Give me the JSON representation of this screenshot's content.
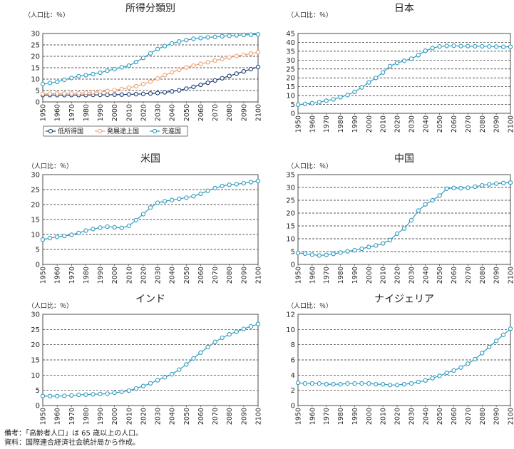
{
  "notes": {
    "remark": "備考：「高齢者人口」は 65 歳以上の人口。",
    "source": "資料：国際連合経済社会統計局から作成。"
  },
  "colors": {
    "low": "#1f3f73",
    "developing": "#f0a173",
    "advanced": "#2e9bc0"
  },
  "chart_data": [
    {
      "type": "line",
      "title": "所得分類別",
      "ylabel": "（人口比：％）",
      "ylim": [
        0,
        30
      ],
      "yticks": [
        0,
        5,
        10,
        15,
        20,
        25,
        30
      ],
      "x": [
        1950,
        1955,
        1960,
        1965,
        1970,
        1975,
        1980,
        1985,
        1990,
        1995,
        2000,
        2005,
        2010,
        2015,
        2020,
        2025,
        2030,
        2035,
        2040,
        2045,
        2050,
        2055,
        2060,
        2065,
        2070,
        2075,
        2080,
        2085,
        2090,
        2095,
        2100
      ],
      "xticks": [
        1950,
        1960,
        1970,
        1980,
        1990,
        2000,
        2010,
        2020,
        2030,
        2040,
        2050,
        2060,
        2070,
        2080,
        2090,
        2100
      ],
      "grid": true,
      "legend": "bottom",
      "series": [
        {
          "name": "低所得国",
          "color_key": "low",
          "values": [
            3.0,
            3.0,
            3.0,
            3.0,
            3.0,
            3.0,
            3.0,
            3.1,
            3.1,
            3.1,
            3.2,
            3.2,
            3.3,
            3.4,
            3.5,
            3.7,
            3.9,
            4.2,
            4.6,
            5.1,
            5.8,
            6.6,
            7.5,
            8.4,
            9.4,
            10.4,
            11.4,
            12.4,
            13.4,
            14.4,
            15.3
          ]
        },
        {
          "name": "発展途上国",
          "color_key": "developing",
          "values": [
            3.5,
            3.6,
            3.7,
            3.7,
            3.7,
            3.8,
            4.0,
            4.2,
            4.5,
            4.8,
            5.2,
            5.6,
            6.2,
            6.9,
            7.8,
            8.9,
            10.3,
            11.7,
            13.0,
            14.1,
            15.1,
            15.9,
            16.7,
            17.4,
            18.1,
            18.8,
            19.5,
            20.1,
            20.6,
            21.2,
            21.8
          ]
        },
        {
          "name": "先進国",
          "color_key": "advanced",
          "values": [
            7.8,
            8.3,
            8.8,
            9.7,
            10.5,
            11.3,
            11.7,
            12.2,
            12.8,
            13.7,
            14.4,
            15.2,
            15.9,
            17.5,
            19.3,
            21.3,
            23.2,
            24.5,
            25.6,
            26.5,
            27.1,
            27.7,
            28.0,
            28.3,
            28.5,
            28.8,
            29.0,
            29.2,
            29.4,
            29.5,
            29.6
          ]
        }
      ]
    },
    {
      "type": "line",
      "title": "日本",
      "ylabel": "（人口比：％）",
      "ylim": [
        0,
        45
      ],
      "yticks": [
        0,
        5,
        10,
        15,
        20,
        25,
        30,
        35,
        40,
        45
      ],
      "x": [
        1950,
        1955,
        1960,
        1965,
        1970,
        1975,
        1980,
        1985,
        1990,
        1995,
        2000,
        2005,
        2010,
        2015,
        2020,
        2025,
        2030,
        2035,
        2040,
        2045,
        2050,
        2055,
        2060,
        2065,
        2070,
        2075,
        2080,
        2085,
        2090,
        2095,
        2100
      ],
      "xticks": [
        1950,
        1960,
        1970,
        1980,
        1990,
        2000,
        2010,
        2020,
        2030,
        2040,
        2050,
        2060,
        2070,
        2080,
        2090,
        2100
      ],
      "grid": true,
      "series": [
        {
          "color_key": "advanced",
          "values": [
            4.9,
            5.3,
            5.7,
            6.3,
            7.1,
            7.9,
            9.1,
            10.3,
            12.1,
            14.6,
            17.4,
            20.0,
            23.0,
            26.6,
            28.4,
            29.6,
            30.8,
            32.8,
            35.3,
            36.8,
            37.7,
            38.0,
            38.1,
            37.9,
            37.9,
            37.8,
            37.8,
            37.7,
            37.6,
            37.5,
            37.5
          ]
        }
      ]
    },
    {
      "type": "line",
      "title": "米国",
      "ylabel": "（人口比：％）",
      "ylim": [
        0,
        30
      ],
      "yticks": [
        0,
        5,
        10,
        15,
        20,
        25,
        30
      ],
      "x": [
        1950,
        1955,
        1960,
        1965,
        1970,
        1975,
        1980,
        1985,
        1990,
        1995,
        2000,
        2005,
        2010,
        2015,
        2020,
        2025,
        2030,
        2035,
        2040,
        2045,
        2050,
        2055,
        2060,
        2065,
        2070,
        2075,
        2080,
        2085,
        2090,
        2095,
        2100
      ],
      "xticks": [
        1950,
        1960,
        1970,
        1980,
        1990,
        2000,
        2010,
        2020,
        2030,
        2040,
        2050,
        2060,
        2070,
        2080,
        2090,
        2100
      ],
      "grid": true,
      "series": [
        {
          "color_key": "advanced",
          "values": [
            8.3,
            8.8,
            9.2,
            9.5,
            9.9,
            10.5,
            11.3,
            11.8,
            12.3,
            12.6,
            12.4,
            12.2,
            12.9,
            14.8,
            16.8,
            19.0,
            20.6,
            21.1,
            21.5,
            21.9,
            22.3,
            22.8,
            23.6,
            24.6,
            25.5,
            26.2,
            26.6,
            26.8,
            27.1,
            27.5,
            27.9
          ]
        }
      ]
    },
    {
      "type": "line",
      "title": "中国",
      "ylabel": "（人口比：％）",
      "ylim": [
        0,
        35
      ],
      "yticks": [
        0,
        5,
        10,
        15,
        20,
        25,
        30,
        35
      ],
      "x": [
        1950,
        1955,
        1960,
        1965,
        1970,
        1975,
        1980,
        1985,
        1990,
        1995,
        2000,
        2005,
        2010,
        2015,
        2020,
        2025,
        2030,
        2035,
        2040,
        2045,
        2050,
        2055,
        2060,
        2065,
        2070,
        2075,
        2080,
        2085,
        2090,
        2095,
        2100
      ],
      "xticks": [
        1950,
        1960,
        1970,
        1980,
        1990,
        2000,
        2010,
        2020,
        2030,
        2040,
        2050,
        2060,
        2070,
        2080,
        2090,
        2100
      ],
      "grid": true,
      "series": [
        {
          "color_key": "advanced",
          "values": [
            4.5,
            4.2,
            3.8,
            3.5,
            3.7,
            4.1,
            4.6,
            5.1,
            5.5,
            6.1,
            6.8,
            7.4,
            8.2,
            9.5,
            12.0,
            14.0,
            17.2,
            21.0,
            23.4,
            25.0,
            26.8,
            29.5,
            29.8,
            29.7,
            29.9,
            30.3,
            30.8,
            31.2,
            31.5,
            31.7,
            31.9
          ]
        }
      ]
    },
    {
      "type": "line",
      "title": "インド",
      "ylabel": "（人口比：％）",
      "ylim": [
        0,
        30
      ],
      "yticks": [
        0,
        5,
        10,
        15,
        20,
        25,
        30
      ],
      "x": [
        1950,
        1955,
        1960,
        1965,
        1970,
        1975,
        1980,
        1985,
        1990,
        1995,
        2000,
        2005,
        2010,
        2015,
        2020,
        2025,
        2030,
        2035,
        2040,
        2045,
        2050,
        2055,
        2060,
        2065,
        2070,
        2075,
        2080,
        2085,
        2090,
        2095,
        2100
      ],
      "xticks": [
        1950,
        1960,
        1970,
        1980,
        1990,
        2000,
        2010,
        2020,
        2030,
        2040,
        2050,
        2060,
        2070,
        2080,
        2090,
        2100
      ],
      "grid": true,
      "series": [
        {
          "color_key": "advanced",
          "values": [
            3.1,
            3.1,
            3.1,
            3.2,
            3.3,
            3.5,
            3.6,
            3.7,
            3.8,
            3.9,
            4.2,
            4.5,
            4.9,
            5.6,
            6.4,
            7.3,
            8.3,
            9.3,
            10.3,
            11.8,
            13.5,
            15.5,
            17.4,
            19.2,
            20.9,
            22.3,
            23.4,
            24.3,
            25.2,
            26.0,
            26.8
          ]
        }
      ]
    },
    {
      "type": "line",
      "title": "ナイジェリア",
      "ylabel": "（人口比：％）",
      "ylim": [
        0,
        12
      ],
      "yticks": [
        0,
        2,
        4,
        6,
        8,
        10,
        12
      ],
      "x": [
        1950,
        1955,
        1960,
        1965,
        1970,
        1975,
        1980,
        1985,
        1990,
        1995,
        2000,
        2005,
        2010,
        2015,
        2020,
        2025,
        2030,
        2035,
        2040,
        2045,
        2050,
        2055,
        2060,
        2065,
        2070,
        2075,
        2080,
        2085,
        2090,
        2095,
        2100
      ],
      "xticks": [
        1950,
        1960,
        1970,
        1980,
        1990,
        2000,
        2010,
        2020,
        2030,
        2040,
        2050,
        2060,
        2070,
        2080,
        2090,
        2100
      ],
      "grid": true,
      "series": [
        {
          "color_key": "advanced",
          "values": [
            3.0,
            2.9,
            2.9,
            2.9,
            2.8,
            2.8,
            2.8,
            2.9,
            2.9,
            2.9,
            2.9,
            2.8,
            2.8,
            2.7,
            2.7,
            2.8,
            2.9,
            3.1,
            3.3,
            3.6,
            3.9,
            4.3,
            4.6,
            5.0,
            5.5,
            6.1,
            6.9,
            7.7,
            8.5,
            9.3,
            10.1
          ]
        }
      ]
    }
  ]
}
